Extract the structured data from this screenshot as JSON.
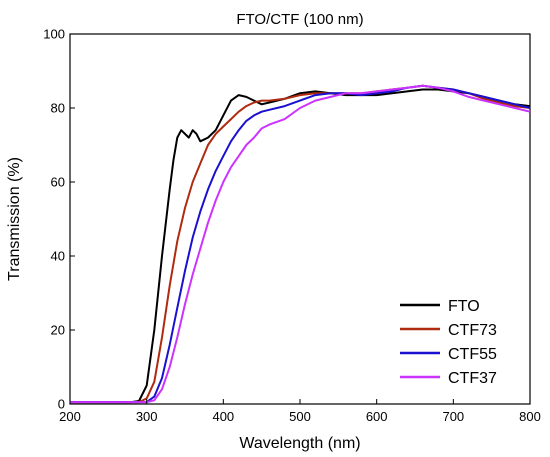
{
  "chart_data": {
    "type": "line",
    "title": "FTO/CTF (100 nm)",
    "xlabel": "Wavelength (nm)",
    "ylabel": "Transmission (%)",
    "xlim": [
      200,
      800
    ],
    "ylim": [
      0,
      100
    ],
    "xticks": [
      "200",
      "300",
      "400",
      "500",
      "600",
      "700",
      "800"
    ],
    "yticks": [
      "0",
      "20",
      "40",
      "60",
      "80",
      "100"
    ],
    "legend_position": "bottom-right",
    "grid": false,
    "series": [
      {
        "name": "FTO",
        "color": "#000000",
        "x": [
          200,
          280,
          290,
          300,
          310,
          320,
          330,
          335,
          340,
          345,
          350,
          355,
          360,
          365,
          370,
          380,
          390,
          400,
          410,
          420,
          430,
          440,
          450,
          460,
          480,
          500,
          520,
          540,
          560,
          580,
          600,
          620,
          640,
          660,
          680,
          700,
          720,
          740,
          760,
          780,
          800
        ],
        "y": [
          0.5,
          0.5,
          0.8,
          5,
          20,
          40,
          58,
          66,
          72,
          74,
          73,
          72,
          74,
          73,
          71,
          72,
          74,
          78,
          82,
          83.5,
          83,
          82,
          81,
          81.5,
          82.5,
          84,
          84.5,
          84,
          83.5,
          83.5,
          83.5,
          84,
          84.5,
          85,
          85,
          84.5,
          84,
          83,
          82,
          81,
          80.5
        ]
      },
      {
        "name": "CTF73",
        "color": "#b02a10",
        "x": [
          200,
          290,
          300,
          310,
          320,
          330,
          340,
          350,
          360,
          370,
          380,
          390,
          400,
          410,
          420,
          430,
          440,
          450,
          460,
          480,
          500,
          520,
          540,
          560,
          580,
          600,
          620,
          640,
          660,
          680,
          700,
          720,
          740,
          760,
          780,
          800
        ],
        "y": [
          0.5,
          0.5,
          1.5,
          6,
          18,
          32,
          44,
          53,
          60,
          65,
          70,
          73,
          75,
          77,
          79,
          80.5,
          81.5,
          82,
          82,
          82.5,
          83.5,
          84,
          84,
          84,
          84,
          84.5,
          85,
          85.5,
          86,
          85.5,
          85,
          84,
          82.5,
          81.5,
          80.5,
          80
        ]
      },
      {
        "name": "CTF55",
        "color": "#1a10d0",
        "x": [
          200,
          300,
          310,
          320,
          330,
          340,
          350,
          360,
          370,
          380,
          390,
          400,
          410,
          420,
          430,
          440,
          450,
          460,
          480,
          500,
          520,
          540,
          560,
          580,
          600,
          620,
          640,
          660,
          680,
          700,
          720,
          740,
          760,
          780,
          800
        ],
        "y": [
          0.5,
          0.5,
          2,
          7,
          16,
          26,
          36,
          45,
          52,
          58,
          63,
          67,
          71,
          74,
          76.5,
          78,
          79,
          79.5,
          80.5,
          82,
          83.5,
          84,
          84,
          83.5,
          84,
          84.5,
          85.5,
          86,
          85.5,
          85,
          84,
          83,
          82,
          81,
          80
        ]
      },
      {
        "name": "CTF37",
        "color": "#cc33ff",
        "x": [
          200,
          300,
          310,
          320,
          330,
          340,
          350,
          360,
          370,
          380,
          390,
          400,
          410,
          420,
          430,
          440,
          450,
          460,
          480,
          500,
          520,
          540,
          560,
          580,
          600,
          620,
          640,
          660,
          680,
          700,
          720,
          740,
          760,
          780,
          800
        ],
        "y": [
          0.5,
          0.5,
          1,
          4,
          10,
          18,
          27,
          35,
          42,
          49,
          55,
          60,
          64,
          67,
          70,
          72,
          74.5,
          75.5,
          77,
          80,
          82,
          83,
          84,
          84,
          84.5,
          85,
          85.5,
          86,
          85.5,
          84.5,
          83,
          82,
          81,
          80,
          79
        ]
      }
    ]
  }
}
